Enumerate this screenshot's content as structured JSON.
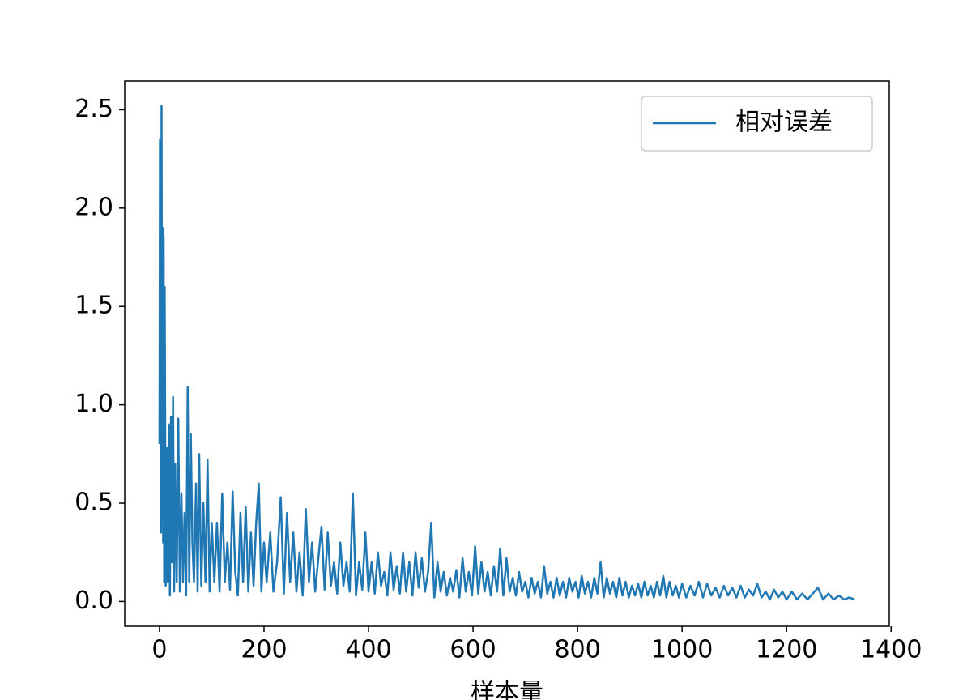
{
  "chart_data": {
    "type": "line",
    "xlabel": "样本量",
    "x": [
      0,
      1,
      3,
      4,
      5,
      6,
      7,
      8,
      9,
      10,
      12,
      14,
      16,
      18,
      20,
      22,
      24,
      26,
      28,
      30,
      33,
      36,
      39,
      42,
      45,
      48,
      51,
      54,
      57,
      60,
      63,
      66,
      70,
      73,
      76,
      80,
      84,
      88,
      92,
      96,
      100,
      105,
      110,
      115,
      120,
      125,
      130,
      135,
      140,
      145,
      150,
      155,
      160,
      165,
      170,
      175,
      180,
      185,
      190,
      195,
      200,
      205,
      212,
      218,
      225,
      232,
      238,
      244,
      250,
      256,
      262,
      268,
      274,
      280,
      286,
      292,
      298,
      304,
      310,
      316,
      322,
      328,
      334,
      340,
      346,
      352,
      358,
      364,
      370,
      376,
      382,
      388,
      394,
      400,
      406,
      412,
      418,
      424,
      430,
      436,
      442,
      448,
      454,
      460,
      466,
      472,
      478,
      484,
      490,
      496,
      502,
      508,
      514,
      520,
      526,
      532,
      538,
      544,
      550,
      556,
      562,
      568,
      574,
      580,
      586,
      592,
      598,
      604,
      610,
      616,
      622,
      628,
      634,
      640,
      646,
      652,
      658,
      664,
      670,
      676,
      682,
      688,
      694,
      700,
      706,
      712,
      718,
      724,
      730,
      736,
      742,
      748,
      754,
      760,
      766,
      772,
      778,
      784,
      790,
      796,
      802,
      808,
      814,
      820,
      826,
      832,
      838,
      844,
      850,
      856,
      862,
      868,
      874,
      880,
      886,
      892,
      898,
      904,
      910,
      916,
      922,
      928,
      934,
      940,
      946,
      952,
      958,
      964,
      970,
      976,
      982,
      988,
      994,
      1000,
      1008,
      1016,
      1024,
      1032,
      1040,
      1048,
      1056,
      1064,
      1072,
      1080,
      1088,
      1096,
      1104,
      1112,
      1120,
      1128,
      1136,
      1144,
      1152,
      1160,
      1168,
      1176,
      1184,
      1192,
      1200,
      1210,
      1220,
      1230,
      1240,
      1250,
      1260,
      1270,
      1280,
      1290,
      1300,
      1310,
      1320,
      1330
    ],
    "series": [
      {
        "name": "相对误差",
        "color": "#1f77b4",
        "values": [
          0.8,
          2.35,
          0.35,
          2.52,
          0.8,
          1.9,
          0.3,
          1.85,
          0.1,
          1.6,
          0.08,
          0.78,
          0.1,
          0.9,
          0.03,
          0.94,
          0.2,
          1.04,
          0.05,
          0.7,
          0.1,
          0.93,
          0.05,
          0.55,
          0.1,
          0.45,
          0.03,
          1.09,
          0.1,
          0.85,
          0.3,
          0.1,
          0.6,
          0.05,
          0.75,
          0.08,
          0.5,
          0.1,
          0.72,
          0.05,
          0.4,
          0.1,
          0.4,
          0.05,
          0.55,
          0.1,
          0.3,
          0.06,
          0.56,
          0.15,
          0.03,
          0.45,
          0.1,
          0.48,
          0.05,
          0.35,
          0.08,
          0.4,
          0.6,
          0.05,
          0.3,
          0.1,
          0.35,
          0.05,
          0.2,
          0.53,
          0.04,
          0.45,
          0.1,
          0.35,
          0.05,
          0.25,
          0.03,
          0.47,
          0.1,
          0.3,
          0.05,
          0.22,
          0.38,
          0.06,
          0.35,
          0.08,
          0.2,
          0.04,
          0.3,
          0.08,
          0.2,
          0.05,
          0.55,
          0.03,
          0.2,
          0.06,
          0.35,
          0.05,
          0.2,
          0.04,
          0.25,
          0.08,
          0.15,
          0.03,
          0.25,
          0.06,
          0.18,
          0.04,
          0.25,
          0.05,
          0.2,
          0.03,
          0.25,
          0.07,
          0.22,
          0.05,
          0.15,
          0.4,
          0.02,
          0.2,
          0.05,
          0.15,
          0.03,
          0.12,
          0.05,
          0.16,
          0.02,
          0.22,
          0.05,
          0.15,
          0.03,
          0.28,
          0.04,
          0.2,
          0.05,
          0.15,
          0.03,
          0.18,
          0.05,
          0.27,
          0.03,
          0.22,
          0.05,
          0.12,
          0.03,
          0.15,
          0.05,
          0.1,
          0.02,
          0.12,
          0.04,
          0.1,
          0.02,
          0.18,
          0.04,
          0.1,
          0.02,
          0.12,
          0.03,
          0.1,
          0.02,
          0.12,
          0.05,
          0.1,
          0.02,
          0.13,
          0.04,
          0.1,
          0.02,
          0.12,
          0.04,
          0.2,
          0.02,
          0.12,
          0.04,
          0.1,
          0.02,
          0.12,
          0.03,
          0.1,
          0.02,
          0.08,
          0.03,
          0.09,
          0.02,
          0.1,
          0.03,
          0.08,
          0.02,
          0.1,
          0.03,
          0.13,
          0.02,
          0.1,
          0.03,
          0.08,
          0.02,
          0.09,
          0.02,
          0.08,
          0.03,
          0.1,
          0.02,
          0.09,
          0.03,
          0.07,
          0.02,
          0.08,
          0.03,
          0.07,
          0.02,
          0.08,
          0.02,
          0.06,
          0.03,
          0.09,
          0.02,
          0.05,
          0.01,
          0.06,
          0.02,
          0.05,
          0.01,
          0.05,
          0.01,
          0.04,
          0.01,
          0.04,
          0.07,
          0.01,
          0.04,
          0.01,
          0.03,
          0.01,
          0.02,
          0.01
        ]
      }
    ],
    "xlim": [
      -66.5,
      1396.5
    ],
    "ylim": [
      -0.126,
      2.646
    ],
    "xticks": [
      0,
      200,
      400,
      600,
      800,
      1000,
      1200,
      1400
    ],
    "yticks": [
      {
        "value": 0,
        "label": "0.0"
      },
      0.5,
      {
        "value": 1,
        "label": "1.0"
      },
      1.5,
      {
        "value": 2,
        "label": "2.0"
      },
      2.5
    ],
    "legend": "upper right"
  }
}
